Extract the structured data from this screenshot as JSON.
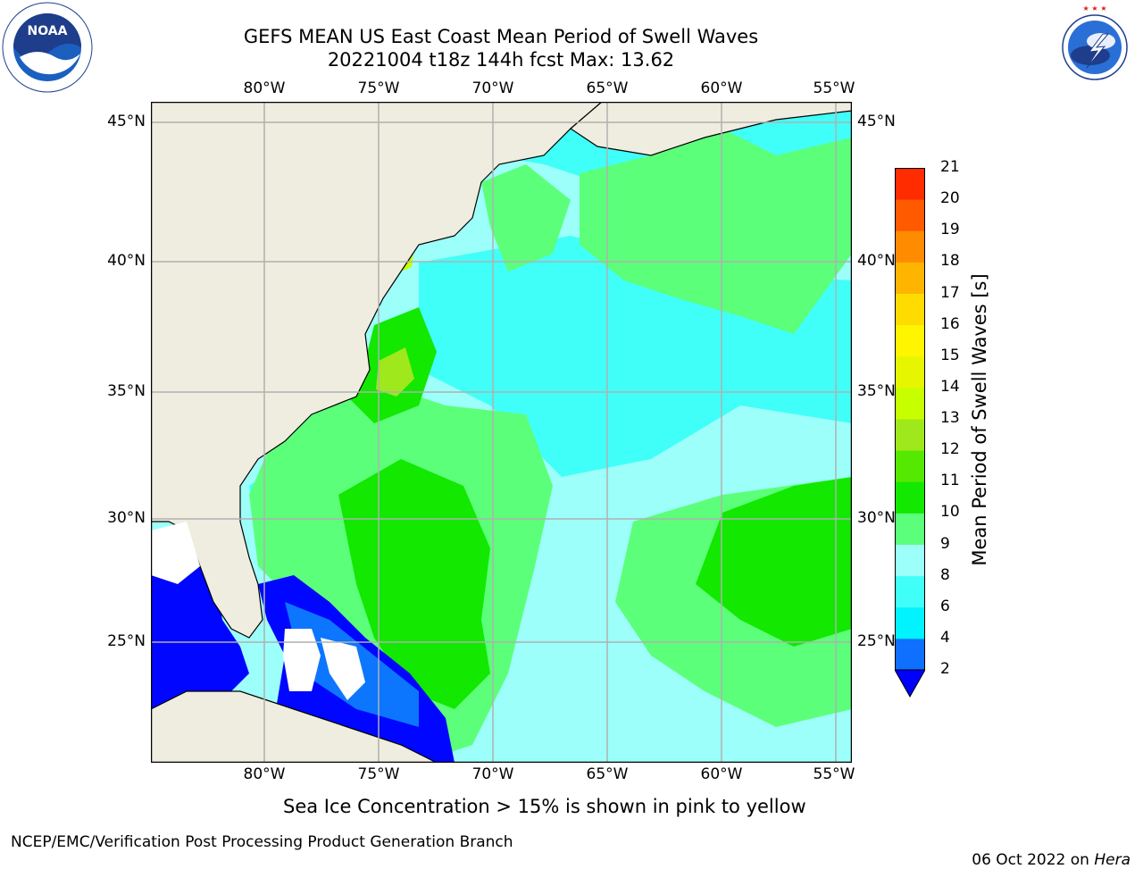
{
  "title": {
    "line1": "GEFS MEAN US East Coast Mean Period of Swell Waves",
    "line2": "20221004 t18z 144h fcst   Max: 13.62"
  },
  "logos": {
    "noaa_text": "NOAA",
    "noaa_ring": "NATIONAL OCEANIC AND ATMOSPHERIC ADMINISTRATION · U.S. DEPARTMENT OF COMMERCE",
    "nws_ring": "NATIONAL WEATHER SERVICE"
  },
  "map": {
    "lon_labels": [
      "80°W",
      "75°W",
      "70°W",
      "65°W",
      "60°W",
      "55°W"
    ],
    "lat_labels": [
      "45°N",
      "40°N",
      "35°N",
      "30°N",
      "25°N"
    ],
    "land_color": "#efeddf",
    "ocean_colors": {
      "light_cyan": "#9dfffa",
      "cyan": "#40fff8",
      "light_green": "#5cff7a",
      "green": "#12e800",
      "lime": "#9ee81b",
      "yellow_green": "#c8ff00",
      "blue": "#0006ff",
      "mid_blue": "#0d76ff"
    }
  },
  "colorbar": {
    "label": "Mean Period of Swell Waves [s]",
    "ticks": [
      "2",
      "4",
      "6",
      "8",
      "9",
      "10",
      "11",
      "12",
      "13",
      "14",
      "15",
      "16",
      "17",
      "18",
      "19",
      "20",
      "21"
    ],
    "colors": [
      "#0f6fff",
      "#00f3ff",
      "#40fff8",
      "#9dfffa",
      "#5cff7a",
      "#12e800",
      "#55e800",
      "#9ee81b",
      "#c8ff00",
      "#e6f500",
      "#fff500",
      "#ffdc00",
      "#ffb400",
      "#ff8c00",
      "#ff5a00",
      "#ff2c00",
      "#ff0000"
    ],
    "extend_color": "#0000ff"
  },
  "caption": "Sea Ice Concentration > 15% is shown in pink to yellow",
  "footer": {
    "left": "NCEP/EMC/Verification Post Processing Product Generation Branch",
    "date": "06 Oct 2022 on ",
    "machine": "Hera"
  }
}
